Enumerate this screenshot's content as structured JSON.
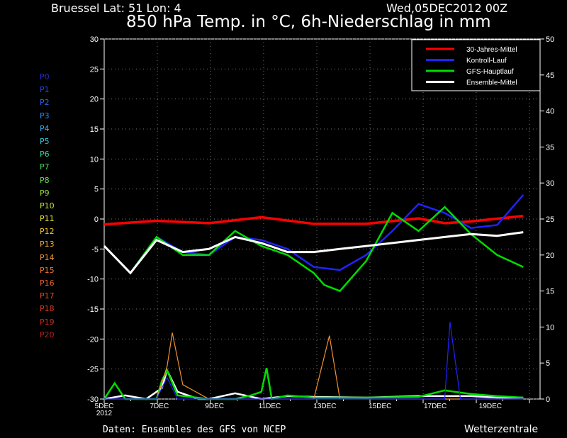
{
  "header": {
    "location": "Bruessel   Lat: 51 Lon: 4",
    "run": "Wed,05DEC2012 00Z",
    "title": "850 hPa Temp. in °C, 6h-Niederschlag in mm"
  },
  "footer": {
    "source": "Daten: Ensembles des GFS von NCEP",
    "brand": "Wetterzentrale"
  },
  "members": [
    {
      "label": "P0",
      "color": "#2a2ad8"
    },
    {
      "label": "P1",
      "color": "#2244e0"
    },
    {
      "label": "P2",
      "color": "#2a66e8"
    },
    {
      "label": "P3",
      "color": "#2a88f0"
    },
    {
      "label": "P4",
      "color": "#33aaf0"
    },
    {
      "label": "P5",
      "color": "#33c8d8"
    },
    {
      "label": "P6",
      "color": "#33d8a0"
    },
    {
      "label": "P7",
      "color": "#44d860"
    },
    {
      "label": "P8",
      "color": "#66e044"
    },
    {
      "label": "P9",
      "color": "#99e033"
    },
    {
      "label": "P10",
      "color": "#c8e033"
    },
    {
      "label": "P11",
      "color": "#e8e033"
    },
    {
      "label": "P12",
      "color": "#f0c833"
    },
    {
      "label": "P13",
      "color": "#f0aa33"
    },
    {
      "label": "P14",
      "color": "#f09033"
    },
    {
      "label": "P15",
      "color": "#f07833"
    },
    {
      "label": "P16",
      "color": "#e86030"
    },
    {
      "label": "P17",
      "color": "#e04a2a"
    },
    {
      "label": "P18",
      "color": "#d83a24"
    },
    {
      "label": "P19",
      "color": "#cc2a20"
    },
    {
      "label": "P20",
      "color": "#b82020"
    }
  ],
  "chart_data": {
    "type": "line",
    "title": "850 hPa Temp. in °C, 6h-Niederschlag in mm",
    "x_labels": [
      "5DEC\n2012",
      "7DEC",
      "9DEC",
      "11DEC",
      "13DEC",
      "15DEC",
      "17DEC",
      "19DEC"
    ],
    "y_left_range": [
      -30,
      30
    ],
    "y_left_ticks": [
      -30,
      -25,
      -20,
      -15,
      -10,
      -5,
      0,
      5,
      10,
      15,
      20,
      25,
      30
    ],
    "y_right_range": [
      0,
      50
    ],
    "y_right_ticks": [
      0,
      5,
      10,
      15,
      20,
      25,
      30,
      35,
      40,
      45,
      50
    ],
    "grid": true,
    "legend_position": "top-right",
    "series": [
      {
        "name": "30-Jahres-Mittel",
        "color": "#ff0000",
        "days": [
          0,
          1,
          2,
          3,
          4,
          5,
          6,
          6.5,
          7,
          8
        ],
        "values": [
          -0.9,
          -0.3,
          -0.7,
          0.3,
          -0.8,
          -0.8,
          0.1,
          -0.7,
          -0.4,
          0.5
        ]
      },
      {
        "name": "Kontroll-Lauf",
        "color": "#2222ff",
        "days": [
          0,
          0.5,
          1,
          1.5,
          2,
          2.5,
          3,
          3.5,
          4,
          4.5,
          5,
          5.5,
          6,
          6.5,
          7,
          7.5,
          8
        ],
        "values": [
          -4.5,
          -9,
          -3,
          -5.5,
          -6,
          -3,
          -3.5,
          -5,
          -8,
          -8.5,
          -6,
          -2,
          2.5,
          1,
          -1.5,
          -1,
          4
        ]
      },
      {
        "name": "GFS-Hauptlauf",
        "color": "#00dd00",
        "days": [
          0,
          0.5,
          1,
          1.5,
          2,
          2.5,
          3,
          3.5,
          4,
          4.2,
          4.5,
          5,
          5.5,
          6,
          6.5,
          7,
          7.5,
          8
        ],
        "values": [
          -4.5,
          -9,
          -3,
          -6,
          -6,
          -2,
          -4.5,
          -6,
          -9,
          -11,
          -12,
          -7,
          1,
          -2,
          2,
          -2.5,
          -6,
          -8
        ]
      },
      {
        "name": "Ensemble-Mittel",
        "color": "#ffffff",
        "days": [
          0,
          0.5,
          1,
          1.5,
          2,
          2.5,
          3,
          3.5,
          4,
          4.5,
          5,
          5.5,
          6,
          6.5,
          7,
          7.5,
          8
        ],
        "values": [
          -4.5,
          -9,
          -3.5,
          -5.5,
          -5,
          -3,
          -4,
          -5.5,
          -5.5,
          -5,
          -4.5,
          -4,
          -3.5,
          -3,
          -2.5,
          -2.8,
          -2.2
        ]
      }
    ],
    "precip_series": [
      {
        "name": "Ensemble-Mittel",
        "color": "#ffffff",
        "days": [
          0,
          0.4,
          0.8,
          1,
          1.1,
          1.2,
          1.4,
          1.8,
          2,
          2.5,
          3,
          3.5,
          4,
          5,
          6,
          7,
          7.5,
          8
        ],
        "values": [
          0,
          0.5,
          0,
          1,
          1.5,
          4,
          1,
          0,
          0,
          0.8,
          0,
          0.4,
          0.3,
          0.2,
          0.4,
          0.4,
          0.2,
          0.2
        ]
      },
      {
        "name": "GFS-Hauptlauf",
        "color": "#00dd00",
        "days": [
          0,
          0.2,
          0.4,
          1,
          1.1,
          1.2,
          1.4,
          2,
          2.5,
          2.8,
          3,
          3.1,
          3.2,
          3.5,
          4,
          5,
          6,
          6.5,
          7,
          7.5,
          8
        ],
        "values": [
          0,
          2.2,
          0,
          0,
          2.5,
          4,
          0.5,
          0,
          0,
          0.5,
          1,
          4.3,
          0,
          0.5,
          0.2,
          0.2,
          0.3,
          1.2,
          0.7,
          0.4,
          0.2
        ]
      },
      {
        "name": "P14",
        "color": "#f09033",
        "days": [
          0,
          1,
          1.2,
          1.3,
          1.5,
          2,
          3,
          4,
          4.3,
          4.5,
          5,
          6,
          7,
          8
        ],
        "values": [
          0,
          0,
          4.5,
          9.2,
          2,
          0,
          0,
          0,
          8.8,
          0,
          0,
          0,
          0,
          0
        ]
      },
      {
        "name": "Kontroll-Lauf",
        "color": "#2222ff",
        "days": [
          0,
          1,
          1.2,
          1.4,
          2,
          3,
          4,
          5,
          6,
          6.5,
          6.6,
          6.8,
          7,
          8
        ],
        "values": [
          0,
          0,
          3,
          0,
          0,
          0,
          0,
          0,
          0,
          0,
          10.7,
          0,
          0,
          0
        ]
      }
    ]
  }
}
